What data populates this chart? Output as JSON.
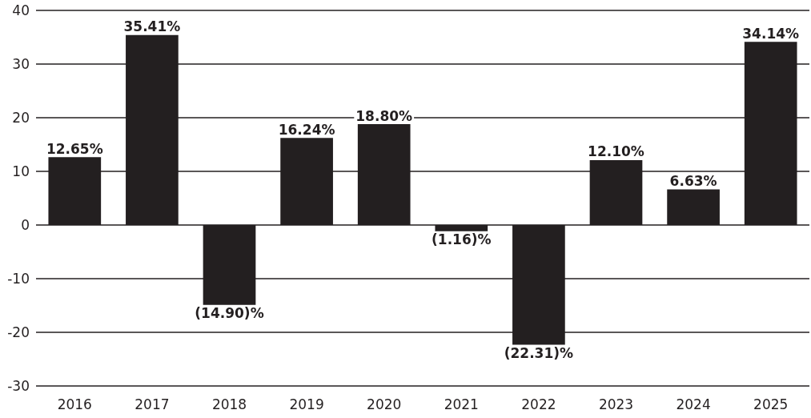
{
  "chart_data": {
    "type": "bar",
    "categories": [
      "2016",
      "2017",
      "2018",
      "2019",
      "2020",
      "2021",
      "2022",
      "2023",
      "2024",
      "2025"
    ],
    "values": [
      12.65,
      35.41,
      -14.9,
      16.24,
      18.8,
      -1.16,
      -22.31,
      12.1,
      6.63,
      34.14
    ],
    "value_labels": [
      "12.65%",
      "35.41%",
      "(14.90)%",
      "16.24%",
      "18.80%",
      "(1.16)%",
      "(22.31)%",
      "12.10%",
      "6.63%",
      "34.14%"
    ],
    "color": "#231f20",
    "ylim": [
      -30,
      40
    ],
    "yticks": [
      -30,
      -20,
      -10,
      0,
      10,
      20,
      30,
      40
    ],
    "grid": "y"
  }
}
